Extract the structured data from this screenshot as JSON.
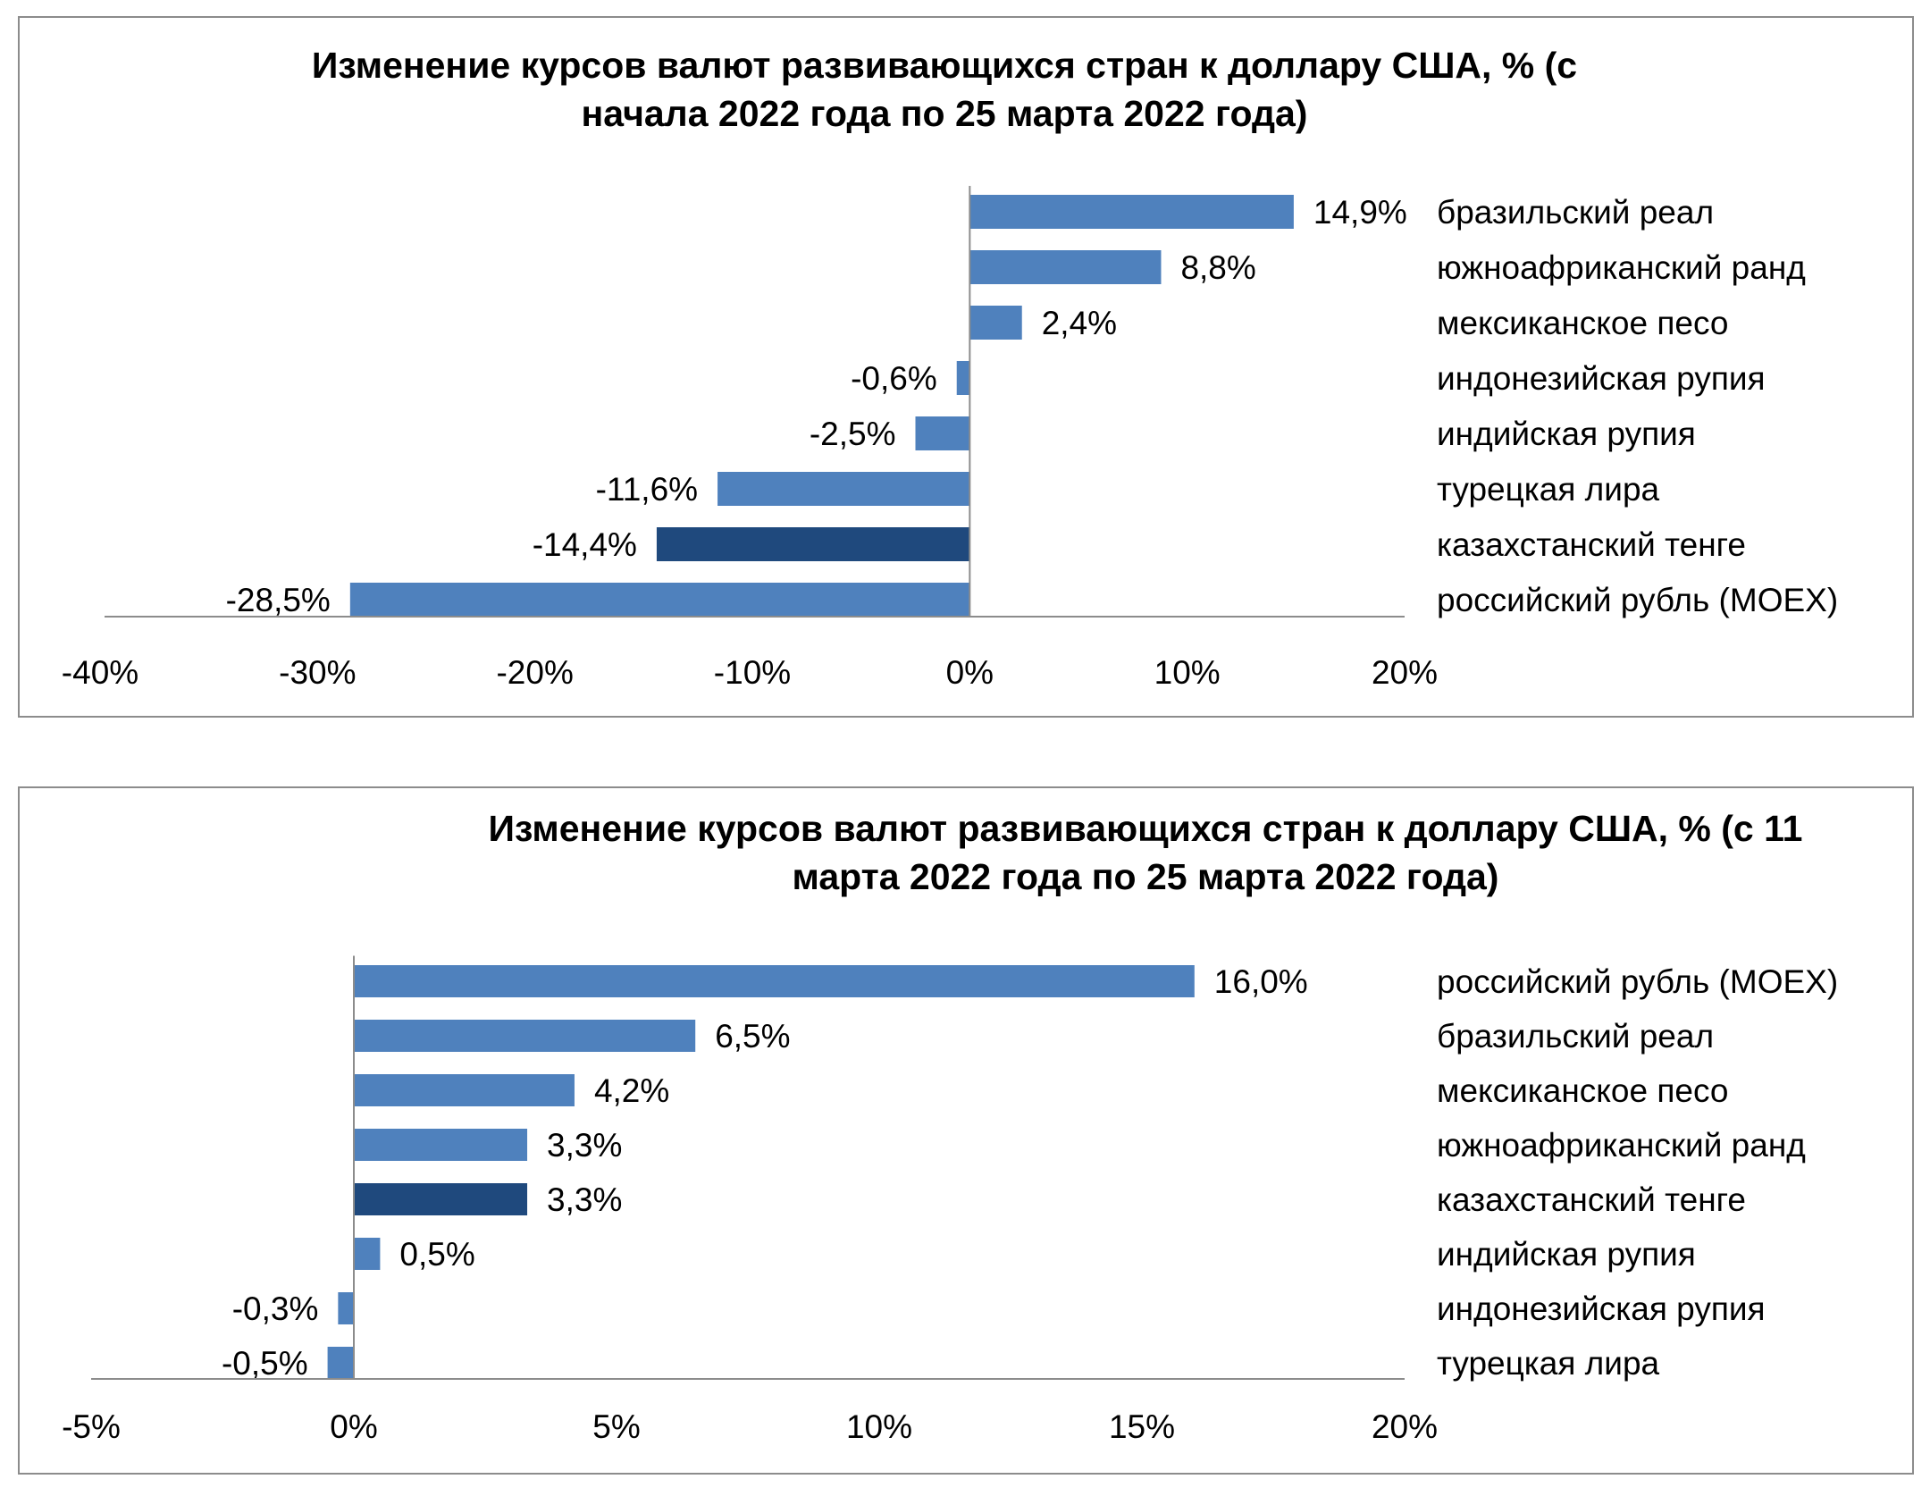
{
  "colors": {
    "bar": "#4f81bd",
    "highlight": "#1f497d",
    "axis": "#8c8c8c",
    "text": "#000000"
  },
  "chart_data": [
    {
      "type": "bar",
      "orientation": "horizontal",
      "title": "Изменение курсов валют развивающихся стран к доллару США, % (с начала 2022 года по 25 марта 2022 года)",
      "title_lines": [
        "Изменение курсов валют развивающихся стран к доллару США, % (с",
        "начала 2022 года по 25 марта 2022 года)"
      ],
      "categories": [
        "бразильский реал",
        "южноафриканский ранд",
        "мексиканское песо",
        "индонезийская рупия",
        "индийская рупия",
        "турецкая лира",
        "казахстанский тенге",
        "российский рубль (MOEX)"
      ],
      "values": [
        14.9,
        8.8,
        2.4,
        -0.6,
        -2.5,
        -11.6,
        -14.4,
        -28.5
      ],
      "value_labels": [
        "14,9%",
        "8,8%",
        "2,4%",
        "-0,6%",
        "-2,5%",
        "-11,6%",
        "-14,4%",
        "-28,5%"
      ],
      "highlight_index": 6,
      "xlim": [
        -40,
        20
      ],
      "xticks": [
        -40,
        -30,
        -20,
        -10,
        0,
        10,
        20
      ],
      "xtick_labels": [
        "-40%",
        "-30%",
        "-20%",
        "-10%",
        "0%",
        "10%",
        "20%"
      ],
      "grid": false,
      "legend": "none"
    },
    {
      "type": "bar",
      "orientation": "horizontal",
      "title": "Изменение курсов валют развивающихся стран к доллару США, % (с 11 марта 2022 года по 25 марта 2022 года)",
      "title_lines": [
        "Изменение курсов валют развивающихся стран к доллару США, % (с 11",
        "марта 2022 года по 25 марта 2022 года)"
      ],
      "categories": [
        "российский рубль (MOEX)",
        "бразильский реал",
        "мексиканское песо",
        "южноафриканский ранд",
        "казахстанский тенге",
        "индийская рупия",
        "индонезийская рупия",
        "турецкая лира"
      ],
      "values": [
        16.0,
        6.5,
        4.2,
        3.3,
        3.3,
        0.5,
        -0.3,
        -0.5
      ],
      "value_labels": [
        "16,0%",
        "6,5%",
        "4,2%",
        "3,3%",
        "3,3%",
        "0,5%",
        "-0,3%",
        "-0,5%"
      ],
      "highlight_index": 4,
      "xlim": [
        -5,
        20
      ],
      "xticks": [
        -5,
        0,
        5,
        10,
        15,
        20
      ],
      "xtick_labels": [
        "-5%",
        "0%",
        "5%",
        "10%",
        "15%",
        "20%"
      ],
      "grid": false,
      "legend": "none"
    }
  ]
}
